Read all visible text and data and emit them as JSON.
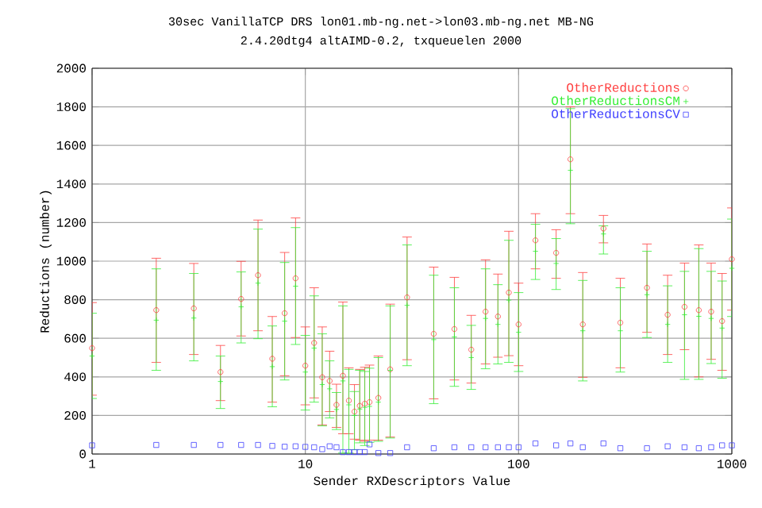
{
  "chart_data": {
    "type": "scatter",
    "title": "30sec VanillaTCP DRS lon01.mb-ng.net->lon03.mb-ng.net MB-NG",
    "subtitle": "2.4.20dtg4 altAIMD-0.2, txqueuelen 2000",
    "xlabel": "Sender RXDescriptors Value",
    "ylabel": "Reductions (number)",
    "x": [
      1,
      2,
      3,
      4,
      5,
      6,
      7,
      8,
      9,
      10,
      11,
      12,
      13,
      14,
      15,
      16,
      17,
      18,
      19,
      20,
      22,
      25,
      30,
      40,
      50,
      60,
      70,
      80,
      90,
      100,
      120,
      150,
      175,
      200,
      250,
      300,
      400,
      500,
      600,
      700,
      800,
      900,
      1000
    ],
    "series": [
      {
        "name": "OtherReductions",
        "color": "#ff4040",
        "marker": "circle",
        "values": [
          549,
          746,
          755,
          425,
          804,
          927,
          494,
          730,
          911,
          458,
          576,
          398,
          379,
          255,
          406,
          277,
          220,
          250,
          261,
          269,
          291,
          439,
          812,
          623,
          648,
          541,
          738,
          713,
          837,
          672,
          1108,
          1043,
          1528,
          672,
          1169,
          681,
          862,
          722,
          763,
          746,
          738,
          689,
          1010
        ],
        "errors": [
          [
            305,
            785
          ],
          [
            475,
            1015
          ],
          [
            516,
            988
          ],
          [
            277,
            563
          ],
          [
            612,
            999
          ],
          [
            639,
            1213
          ],
          [
            269,
            713
          ],
          [
            406,
            1045
          ],
          [
            604,
            1224
          ],
          [
            255,
            659
          ],
          [
            291,
            862
          ],
          [
            151,
            659
          ],
          [
            220,
            533
          ],
          [
            138,
            362
          ],
          [
            105,
            788
          ],
          [
            105,
            447
          ],
          [
            77,
            360
          ],
          [
            72,
            439
          ],
          [
            66,
            450
          ],
          [
            72,
            461
          ],
          [
            72,
            508
          ],
          [
            88,
            777
          ],
          [
            489,
            1125
          ],
          [
            286,
            969
          ],
          [
            384,
            916
          ],
          [
            368,
            719
          ],
          [
            467,
            1007
          ],
          [
            502,
            933
          ],
          [
            510,
            1155
          ],
          [
            458,
            886
          ],
          [
            960,
            1246
          ],
          [
            911,
            1163
          ],
          [
            1246,
            1800
          ],
          [
            398,
            941
          ],
          [
            1095,
            1237
          ],
          [
            447,
            911
          ],
          [
            631,
            1089
          ],
          [
            516,
            927
          ],
          [
            541,
            990
          ],
          [
            400,
            1084
          ],
          [
            491,
            990
          ],
          [
            434,
            936
          ],
          [
            746,
            1276
          ]
        ]
      },
      {
        "name": "OtherReductionsCM",
        "color": "#33ee33",
        "marker": "cross",
        "values": [
          508,
          694,
          705,
          376,
          763,
          886,
          453,
          689,
          870,
          425,
          549,
          360,
          338,
          231,
          379,
          255,
          200,
          233,
          242,
          247,
          269,
          434,
          771,
          593,
          607,
          500,
          703,
          672,
          798,
          631,
          1051,
          988,
          1471,
          639,
          1141,
          639,
          826,
          672,
          722,
          714,
          703,
          653,
          963
        ],
        "errors": [
          [
            288,
            730
          ],
          [
            434,
            960
          ],
          [
            483,
            936
          ],
          [
            236,
            508
          ],
          [
            576,
            944
          ],
          [
            598,
            1166
          ],
          [
            245,
            664
          ],
          [
            384,
            993
          ],
          [
            568,
            1174
          ],
          [
            228,
            615
          ],
          [
            269,
            820
          ],
          [
            146,
            623
          ],
          [
            187,
            483
          ],
          [
            127,
            319
          ],
          [
            5,
            768
          ],
          [
            5,
            439
          ],
          [
            22,
            324
          ],
          [
            58,
            434
          ],
          [
            44,
            428
          ],
          [
            61,
            445
          ],
          [
            66,
            500
          ],
          [
            83,
            768
          ],
          [
            458,
            1084
          ],
          [
            261,
            927
          ],
          [
            351,
            862
          ],
          [
            335,
            667
          ],
          [
            442,
            960
          ],
          [
            467,
            878
          ],
          [
            475,
            1108
          ],
          [
            428,
            837
          ],
          [
            905,
            1191
          ],
          [
            853,
            1117
          ],
          [
            1194,
            1791
          ],
          [
            379,
            900
          ],
          [
            1037,
            1183
          ],
          [
            425,
            862
          ],
          [
            604,
            1051
          ],
          [
            475,
            872
          ],
          [
            387,
            947
          ],
          [
            387,
            1065
          ],
          [
            469,
            947
          ],
          [
            393,
            897
          ],
          [
            713,
            1218
          ]
        ]
      },
      {
        "name": "OtherReductionsCV",
        "color": "#4040ff",
        "marker": "square",
        "values": [
          45,
          47,
          47,
          47,
          47,
          47,
          42,
          38,
          40,
          37,
          35,
          25,
          40,
          35,
          10,
          10,
          10,
          10,
          10,
          50,
          5,
          5,
          35,
          30,
          35,
          35,
          35,
          35,
          35,
          35,
          55,
          45,
          55,
          35,
          55,
          30,
          30,
          40,
          35,
          30,
          35,
          45,
          45
        ]
      }
    ],
    "xlim": [
      1,
      1000
    ],
    "xticks": [
      1,
      10,
      100,
      1000
    ],
    "ylim": [
      0,
      2000
    ],
    "yticks": [
      0,
      200,
      400,
      600,
      800,
      1000,
      1200,
      1400,
      1600,
      1800,
      2000
    ],
    "log": "x",
    "grid": true,
    "legend": "top right"
  }
}
